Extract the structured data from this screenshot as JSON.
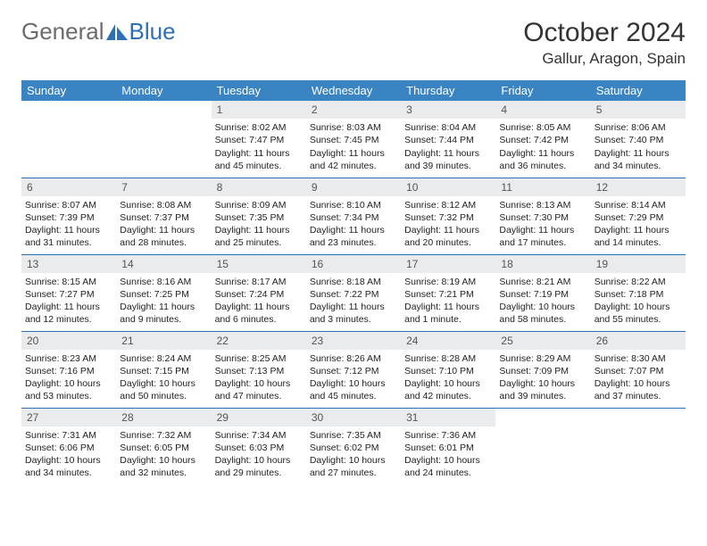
{
  "logo": {
    "text1": "General",
    "text2": "Blue"
  },
  "title": "October 2024",
  "location": "Gallur, Aragon, Spain",
  "colors": {
    "header_bg": "#3b84c4",
    "header_fg": "#ffffff",
    "daynum_bg": "#e9ebec",
    "daynum_fg": "#555555",
    "border": "#2f6fb3",
    "logo_gray": "#6b6b6b",
    "logo_blue": "#2f6fb3"
  },
  "day_headers": [
    "Sunday",
    "Monday",
    "Tuesday",
    "Wednesday",
    "Thursday",
    "Friday",
    "Saturday"
  ],
  "weeks": [
    [
      null,
      null,
      {
        "n": "1",
        "sr": "8:02 AM",
        "ss": "7:47 PM",
        "dl": "11 hours and 45 minutes."
      },
      {
        "n": "2",
        "sr": "8:03 AM",
        "ss": "7:45 PM",
        "dl": "11 hours and 42 minutes."
      },
      {
        "n": "3",
        "sr": "8:04 AM",
        "ss": "7:44 PM",
        "dl": "11 hours and 39 minutes."
      },
      {
        "n": "4",
        "sr": "8:05 AM",
        "ss": "7:42 PM",
        "dl": "11 hours and 36 minutes."
      },
      {
        "n": "5",
        "sr": "8:06 AM",
        "ss": "7:40 PM",
        "dl": "11 hours and 34 minutes."
      }
    ],
    [
      {
        "n": "6",
        "sr": "8:07 AM",
        "ss": "7:39 PM",
        "dl": "11 hours and 31 minutes."
      },
      {
        "n": "7",
        "sr": "8:08 AM",
        "ss": "7:37 PM",
        "dl": "11 hours and 28 minutes."
      },
      {
        "n": "8",
        "sr": "8:09 AM",
        "ss": "7:35 PM",
        "dl": "11 hours and 25 minutes."
      },
      {
        "n": "9",
        "sr": "8:10 AM",
        "ss": "7:34 PM",
        "dl": "11 hours and 23 minutes."
      },
      {
        "n": "10",
        "sr": "8:12 AM",
        "ss": "7:32 PM",
        "dl": "11 hours and 20 minutes."
      },
      {
        "n": "11",
        "sr": "8:13 AM",
        "ss": "7:30 PM",
        "dl": "11 hours and 17 minutes."
      },
      {
        "n": "12",
        "sr": "8:14 AM",
        "ss": "7:29 PM",
        "dl": "11 hours and 14 minutes."
      }
    ],
    [
      {
        "n": "13",
        "sr": "8:15 AM",
        "ss": "7:27 PM",
        "dl": "11 hours and 12 minutes."
      },
      {
        "n": "14",
        "sr": "8:16 AM",
        "ss": "7:25 PM",
        "dl": "11 hours and 9 minutes."
      },
      {
        "n": "15",
        "sr": "8:17 AM",
        "ss": "7:24 PM",
        "dl": "11 hours and 6 minutes."
      },
      {
        "n": "16",
        "sr": "8:18 AM",
        "ss": "7:22 PM",
        "dl": "11 hours and 3 minutes."
      },
      {
        "n": "17",
        "sr": "8:19 AM",
        "ss": "7:21 PM",
        "dl": "11 hours and 1 minute."
      },
      {
        "n": "18",
        "sr": "8:21 AM",
        "ss": "7:19 PM",
        "dl": "10 hours and 58 minutes."
      },
      {
        "n": "19",
        "sr": "8:22 AM",
        "ss": "7:18 PM",
        "dl": "10 hours and 55 minutes."
      }
    ],
    [
      {
        "n": "20",
        "sr": "8:23 AM",
        "ss": "7:16 PM",
        "dl": "10 hours and 53 minutes."
      },
      {
        "n": "21",
        "sr": "8:24 AM",
        "ss": "7:15 PM",
        "dl": "10 hours and 50 minutes."
      },
      {
        "n": "22",
        "sr": "8:25 AM",
        "ss": "7:13 PM",
        "dl": "10 hours and 47 minutes."
      },
      {
        "n": "23",
        "sr": "8:26 AM",
        "ss": "7:12 PM",
        "dl": "10 hours and 45 minutes."
      },
      {
        "n": "24",
        "sr": "8:28 AM",
        "ss": "7:10 PM",
        "dl": "10 hours and 42 minutes."
      },
      {
        "n": "25",
        "sr": "8:29 AM",
        "ss": "7:09 PM",
        "dl": "10 hours and 39 minutes."
      },
      {
        "n": "26",
        "sr": "8:30 AM",
        "ss": "7:07 PM",
        "dl": "10 hours and 37 minutes."
      }
    ],
    [
      {
        "n": "27",
        "sr": "7:31 AM",
        "ss": "6:06 PM",
        "dl": "10 hours and 34 minutes."
      },
      {
        "n": "28",
        "sr": "7:32 AM",
        "ss": "6:05 PM",
        "dl": "10 hours and 32 minutes."
      },
      {
        "n": "29",
        "sr": "7:34 AM",
        "ss": "6:03 PM",
        "dl": "10 hours and 29 minutes."
      },
      {
        "n": "30",
        "sr": "7:35 AM",
        "ss": "6:02 PM",
        "dl": "10 hours and 27 minutes."
      },
      {
        "n": "31",
        "sr": "7:36 AM",
        "ss": "6:01 PM",
        "dl": "10 hours and 24 minutes."
      },
      null,
      null
    ]
  ],
  "labels": {
    "sunrise": "Sunrise: ",
    "sunset": "Sunset: ",
    "daylight": "Daylight: "
  }
}
